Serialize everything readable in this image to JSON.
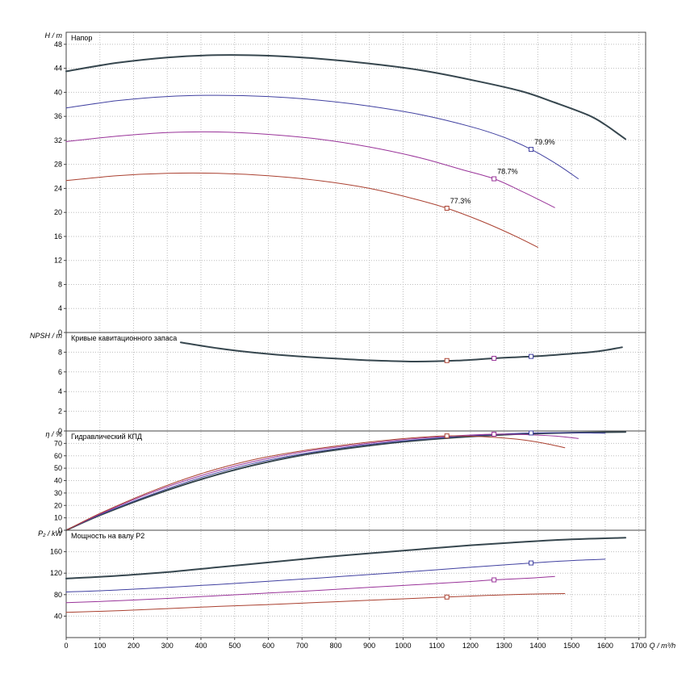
{
  "colors": {
    "speed_1": "#37474f",
    "speed_2": "#4040a0",
    "speed_3": "#993399",
    "speed_4": "#aa4030",
    "grid": "#bdbdbd",
    "axis": "#444444"
  },
  "x_axis": {
    "label": "Q / m³/h",
    "min": 0,
    "max": 1720,
    "tick_step": 100,
    "tick_last": 1700
  },
  "chart_data": [
    {
      "id": "head",
      "type": "line",
      "title": "Напор",
      "ylabel": "H / m",
      "ylim": [
        0,
        50
      ],
      "ytick_min": 0,
      "ytick_step": 4,
      "ytick_max": 48,
      "series": [
        {
          "name": "curve-1",
          "color_key": "speed_1",
          "width": 2,
          "points": [
            [
              0,
              43.5
            ],
            [
              150,
              44.9
            ],
            [
              300,
              45.8
            ],
            [
              450,
              46.2
            ],
            [
              600,
              46.1
            ],
            [
              750,
              45.6
            ],
            [
              900,
              44.8
            ],
            [
              1050,
              43.7
            ],
            [
              1200,
              42.1
            ],
            [
              1350,
              40.2
            ],
            [
              1450,
              38.3
            ],
            [
              1550,
              36.2
            ],
            [
              1600,
              34.6
            ],
            [
              1660,
              32.2
            ]
          ]
        },
        {
          "name": "curve-2",
          "color_key": "speed_2",
          "width": 1,
          "points": [
            [
              0,
              37.4
            ],
            [
              150,
              38.6
            ],
            [
              300,
              39.3
            ],
            [
              450,
              39.5
            ],
            [
              600,
              39.3
            ],
            [
              750,
              38.7
            ],
            [
              900,
              37.7
            ],
            [
              1050,
              36.3
            ],
            [
              1200,
              34.3
            ],
            [
              1300,
              32.5
            ],
            [
              1380,
              30.5
            ],
            [
              1460,
              27.9
            ],
            [
              1520,
              25.6
            ]
          ]
        },
        {
          "name": "curve-3",
          "color_key": "speed_3",
          "width": 1,
          "points": [
            [
              0,
              31.8
            ],
            [
              150,
              32.7
            ],
            [
              300,
              33.3
            ],
            [
              450,
              33.4
            ],
            [
              600,
              33.0
            ],
            [
              750,
              32.2
            ],
            [
              900,
              30.9
            ],
            [
              1050,
              29.1
            ],
            [
              1170,
              27.2
            ],
            [
              1270,
              25.6
            ],
            [
              1360,
              23.3
            ],
            [
              1450,
              20.8
            ]
          ]
        },
        {
          "name": "curve-4",
          "color_key": "speed_4",
          "width": 1,
          "points": [
            [
              0,
              25.3
            ],
            [
              150,
              26.1
            ],
            [
              300,
              26.5
            ],
            [
              450,
              26.5
            ],
            [
              600,
              26.1
            ],
            [
              750,
              25.3
            ],
            [
              900,
              24.0
            ],
            [
              1030,
              22.3
            ],
            [
              1130,
              20.7
            ],
            [
              1230,
              18.6
            ],
            [
              1320,
              16.4
            ],
            [
              1400,
              14.2
            ]
          ]
        }
      ],
      "markers": [
        {
          "color_key": "speed_4",
          "q": 1130,
          "v": 20.7
        },
        {
          "color_key": "speed_3",
          "q": 1270,
          "v": 25.6
        },
        {
          "color_key": "speed_2",
          "q": 1380,
          "v": 30.5
        }
      ],
      "annotations": [
        {
          "text": "77.3%",
          "q": 1130,
          "v": 20.7,
          "color_key": "speed_4"
        },
        {
          "text": "78.7%",
          "q": 1270,
          "v": 25.6,
          "color_key": "speed_3"
        },
        {
          "text": "79.9%",
          "q": 1380,
          "v": 30.5,
          "color_key": "speed_2"
        }
      ]
    },
    {
      "id": "npsh",
      "type": "line",
      "title": "Кривые кавитационного запаса",
      "ylabel": "NPSH / m",
      "ylim": [
        0,
        10
      ],
      "ytick_min": 0,
      "ytick_step": 2,
      "ytick_max": 8,
      "series": [
        {
          "name": "npsh-curve",
          "color_key": "speed_1",
          "width": 2,
          "points": [
            [
              340,
              9.0
            ],
            [
              450,
              8.4
            ],
            [
              560,
              7.95
            ],
            [
              680,
              7.6
            ],
            [
              800,
              7.35
            ],
            [
              920,
              7.15
            ],
            [
              1040,
              7.05
            ],
            [
              1160,
              7.15
            ],
            [
              1280,
              7.4
            ],
            [
              1400,
              7.6
            ],
            [
              1500,
              7.85
            ],
            [
              1580,
              8.1
            ],
            [
              1650,
              8.5
            ]
          ]
        }
      ],
      "markers": [
        {
          "color_key": "speed_4",
          "q": 1130,
          "v": 7.15
        },
        {
          "color_key": "speed_3",
          "q": 1270,
          "v": 7.38
        },
        {
          "color_key": "speed_2",
          "q": 1380,
          "v": 7.57
        }
      ],
      "annotations": []
    },
    {
      "id": "efficiency",
      "type": "line",
      "title": "Гидравлический КПД",
      "ylabel": "η / %",
      "ylim": [
        0,
        80
      ],
      "ytick_min": 0,
      "ytick_step": 10,
      "ytick_max": 70,
      "series": [
        {
          "name": "eff-curve-1",
          "color_key": "speed_1",
          "width": 2,
          "points": [
            [
              0,
              0
            ],
            [
              100,
              12
            ],
            [
              250,
              27.5
            ],
            [
              400,
              41
            ],
            [
              550,
              52
            ],
            [
              700,
              60.5
            ],
            [
              850,
              66.5
            ],
            [
              1000,
              71.3
            ],
            [
              1150,
              74.6
            ],
            [
              1300,
              77
            ],
            [
              1450,
              78.3
            ],
            [
              1600,
              79
            ],
            [
              1660,
              79.2
            ]
          ]
        },
        {
          "name": "eff-curve-2",
          "color_key": "speed_2",
          "width": 1,
          "points": [
            [
              0,
              0
            ],
            [
              100,
              12.5
            ],
            [
              250,
              28.5
            ],
            [
              400,
              42.5
            ],
            [
              550,
              53.5
            ],
            [
              700,
              61.5
            ],
            [
              850,
              67.5
            ],
            [
              1000,
              72
            ],
            [
              1150,
              75.3
            ],
            [
              1300,
              77.6
            ],
            [
              1380,
              78.4
            ],
            [
              1500,
              78.6
            ],
            [
              1600,
              78.2
            ]
          ]
        },
        {
          "name": "eff-curve-3",
          "color_key": "speed_3",
          "width": 1,
          "points": [
            [
              0,
              0
            ],
            [
              100,
              13
            ],
            [
              250,
              30
            ],
            [
              400,
              44
            ],
            [
              550,
              55
            ],
            [
              700,
              63
            ],
            [
              850,
              68.5
            ],
            [
              1000,
              73
            ],
            [
              1150,
              76
            ],
            [
              1270,
              77.4
            ],
            [
              1370,
              77
            ],
            [
              1450,
              75.9
            ],
            [
              1520,
              74
            ]
          ]
        },
        {
          "name": "eff-curve-4",
          "color_key": "speed_4",
          "width": 1,
          "points": [
            [
              0,
              0
            ],
            [
              100,
              13.5
            ],
            [
              250,
              31
            ],
            [
              400,
              45.5
            ],
            [
              550,
              56.5
            ],
            [
              700,
              64
            ],
            [
              850,
              69.5
            ],
            [
              1000,
              73.8
            ],
            [
              1130,
              76
            ],
            [
              1250,
              75.2
            ],
            [
              1350,
              73
            ],
            [
              1420,
              70
            ],
            [
              1480,
              66.5
            ]
          ]
        }
      ],
      "markers": [
        {
          "color_key": "speed_4",
          "q": 1130,
          "v": 76
        },
        {
          "color_key": "speed_3",
          "q": 1270,
          "v": 77.4
        },
        {
          "color_key": "speed_2",
          "q": 1380,
          "v": 78.4
        }
      ],
      "annotations": []
    },
    {
      "id": "power",
      "type": "line",
      "title": "Мощность на валу P2",
      "ylabel": "P₂ / kW",
      "ylim": [
        0,
        200
      ],
      "ytick_min": 40,
      "ytick_step": 40,
      "ytick_max": 160,
      "series": [
        {
          "name": "power-curve-1",
          "color_key": "speed_1",
          "width": 2,
          "points": [
            [
              0,
              110
            ],
            [
              150,
              115
            ],
            [
              300,
              122
            ],
            [
              450,
              131
            ],
            [
              600,
              140
            ],
            [
              750,
              149
            ],
            [
              900,
              157
            ],
            [
              1050,
              164.5
            ],
            [
              1200,
              172
            ],
            [
              1350,
              178
            ],
            [
              1500,
              183
            ],
            [
              1660,
              186
            ]
          ]
        },
        {
          "name": "power-curve-2",
          "color_key": "speed_2",
          "width": 1,
          "points": [
            [
              0,
              85
            ],
            [
              150,
              88.5
            ],
            [
              300,
              93.5
            ],
            [
              450,
              99
            ],
            [
              600,
              105
            ],
            [
              750,
              111
            ],
            [
              900,
              117.5
            ],
            [
              1050,
              124
            ],
            [
              1200,
              131
            ],
            [
              1380,
              139
            ],
            [
              1500,
              143.5
            ],
            [
              1600,
              146
            ]
          ]
        },
        {
          "name": "power-curve-3",
          "color_key": "speed_3",
          "width": 1,
          "points": [
            [
              0,
              65
            ],
            [
              150,
              68.5
            ],
            [
              300,
              73
            ],
            [
              450,
              78
            ],
            [
              600,
              83
            ],
            [
              750,
              88
            ],
            [
              900,
              93.5
            ],
            [
              1050,
              99
            ],
            [
              1200,
              104.5
            ],
            [
              1270,
              107.5
            ],
            [
              1380,
              111
            ],
            [
              1450,
              114
            ]
          ]
        },
        {
          "name": "power-curve-4",
          "color_key": "speed_4",
          "width": 1,
          "points": [
            [
              0,
              47
            ],
            [
              150,
              50
            ],
            [
              300,
              54
            ],
            [
              450,
              58
            ],
            [
              600,
              61.5
            ],
            [
              750,
              65.5
            ],
            [
              900,
              69.5
            ],
            [
              1030,
              73
            ],
            [
              1130,
              75.5
            ],
            [
              1250,
              78.5
            ],
            [
              1380,
              81
            ],
            [
              1480,
              82
            ]
          ]
        }
      ],
      "markers": [
        {
          "color_key": "speed_4",
          "q": 1130,
          "v": 75.5
        },
        {
          "color_key": "speed_3",
          "q": 1270,
          "v": 107.5
        },
        {
          "color_key": "speed_2",
          "q": 1380,
          "v": 139
        }
      ],
      "annotations": []
    }
  ]
}
